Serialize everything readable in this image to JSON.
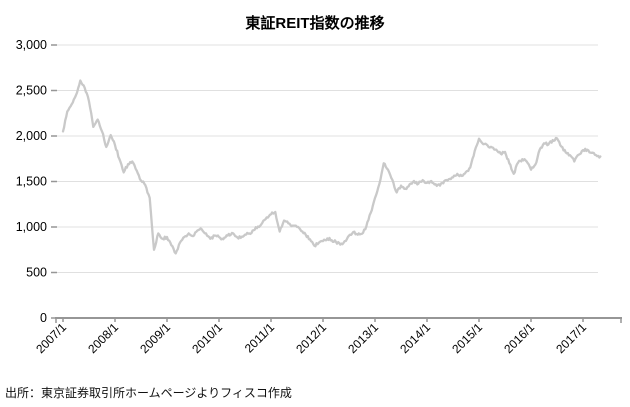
{
  "title": "東証REIT指数の推移",
  "source": "出所：東京証券取引所ホームページよりフィスコ作成",
  "colors": {
    "line": "#c9c9c9",
    "grid": "#e0e0e0",
    "axis": "#969696",
    "text": "#000000"
  },
  "chart_data": {
    "type": "line",
    "title": "東証REIT指数の推移",
    "xlabel": "",
    "ylabel": "",
    "ylim": [
      0,
      3000
    ],
    "grid": "horizontal",
    "legend": "none",
    "y_tick_values": [
      0,
      500,
      1000,
      1500,
      2000,
      2500,
      3000
    ],
    "y_tick_labels": [
      "0",
      "500",
      "1,000",
      "1,500",
      "2,000",
      "2,500",
      "3,000"
    ],
    "x_tick_labels": [
      "2007/1",
      "2008/1",
      "2009/1",
      "2010/1",
      "2011/1",
      "2012/1",
      "2013/1",
      "2014/1",
      "2015/1",
      "2016/1",
      "2017/1"
    ],
    "x_start": "2007/1",
    "x_end": "2017/5",
    "x_frequency": "monthly",
    "series": [
      {
        "name": "東証REIT指数",
        "values": [
          2050,
          2270,
          2350,
          2450,
          2610,
          2530,
          2380,
          2100,
          2180,
          2050,
          1880,
          2010,
          1900,
          1750,
          1600,
          1690,
          1720,
          1620,
          1510,
          1460,
          1320,
          750,
          930,
          870,
          890,
          800,
          710,
          830,
          890,
          930,
          900,
          960,
          975,
          930,
          870,
          905,
          890,
          865,
          905,
          935,
          895,
          880,
          915,
          930,
          965,
          1005,
          1045,
          1105,
          1140,
          1165,
          950,
          1070,
          1040,
          1015,
          1000,
          955,
          915,
          865,
          795,
          825,
          845,
          875,
          855,
          835,
          805,
          845,
          905,
          945,
          915,
          925,
          1005,
          1155,
          1320,
          1470,
          1700,
          1630,
          1520,
          1380,
          1455,
          1420,
          1470,
          1505,
          1475,
          1515,
          1485,
          1505,
          1470,
          1455,
          1505,
          1525,
          1545,
          1585,
          1560,
          1605,
          1655,
          1835,
          1970,
          1910,
          1895,
          1875,
          1850,
          1805,
          1825,
          1700,
          1585,
          1705,
          1745,
          1720,
          1630,
          1685,
          1850,
          1920,
          1905,
          1955,
          1975,
          1885,
          1820,
          1790,
          1720,
          1795,
          1845,
          1850,
          1815,
          1790,
          1775
        ]
      }
    ]
  }
}
